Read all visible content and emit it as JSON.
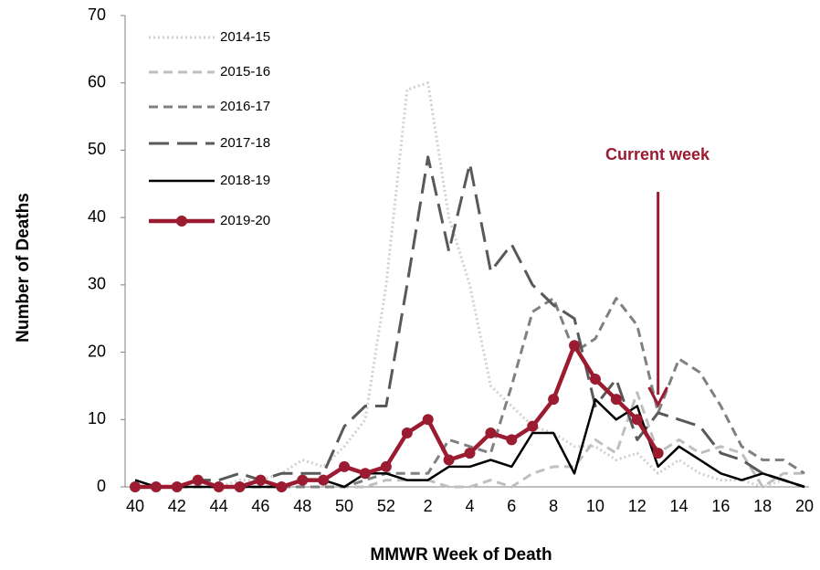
{
  "chart_data": {
    "type": "line",
    "x_label": "MMWR Week of Death",
    "y_label": "Number of Deaths",
    "annotation": "Current week",
    "categories": [
      "40",
      null,
      "42",
      null,
      "44",
      null,
      "46",
      null,
      "48",
      null,
      "50",
      null,
      "52",
      null,
      "2",
      null,
      "4",
      null,
      "6",
      null,
      "8",
      null,
      "10",
      null,
      "12",
      null,
      "14",
      null,
      "16",
      null,
      "18",
      null,
      "20"
    ],
    "ylim": [
      0,
      70
    ],
    "yticks": [
      0,
      10,
      20,
      30,
      40,
      50,
      60,
      70
    ],
    "legend": "upper-left",
    "series": [
      {
        "name": "2014-15",
        "color": "#d0d0d0",
        "style": "dotted",
        "values": [
          0,
          0,
          0,
          0,
          0,
          1,
          1,
          2,
          4,
          3,
          6,
          10,
          30,
          59,
          60,
          40,
          30,
          15,
          12,
          9,
          8,
          6,
          6,
          4,
          5,
          2,
          4,
          2,
          1,
          1,
          0,
          1,
          0
        ]
      },
      {
        "name": "2015-16",
        "color": "#bfbfbf",
        "style": "dashed",
        "values": [
          0,
          0,
          0,
          0,
          0,
          0,
          0,
          0,
          0,
          0,
          0,
          0,
          1,
          1,
          1,
          0,
          0,
          1,
          0,
          2,
          3,
          3,
          7,
          5,
          14,
          5,
          7,
          5,
          6,
          5,
          0,
          2,
          2
        ]
      },
      {
        "name": "2016-17",
        "color": "#808080",
        "style": "dashed",
        "values": [
          0,
          0,
          0,
          0,
          0,
          0,
          0,
          0,
          0,
          0,
          0,
          1,
          2,
          2,
          2,
          7,
          6,
          5,
          15,
          26,
          28,
          20,
          22,
          28,
          24,
          11,
          19,
          17,
          12,
          6,
          4,
          4,
          2
        ]
      },
      {
        "name": "2017-18",
        "color": "#595959",
        "style": "longdash",
        "values": [
          0,
          0,
          0,
          1,
          1,
          2,
          1,
          2,
          2,
          2,
          9,
          12,
          12,
          30,
          49,
          35,
          48,
          32,
          36,
          30,
          27,
          25,
          12,
          16,
          7,
          11,
          10,
          9,
          5,
          4,
          2,
          1,
          0
        ]
      },
      {
        "name": "2018-19",
        "color": "#000000",
        "style": "solid",
        "values": [
          1,
          0,
          0,
          0,
          0,
          0,
          0,
          0,
          1,
          1,
          0,
          2,
          2,
          1,
          1,
          3,
          3,
          4,
          3,
          8,
          8,
          2,
          13,
          10,
          12,
          3,
          6,
          4,
          2,
          1,
          2,
          1,
          0
        ]
      },
      {
        "name": "2019-20",
        "color": "#9b1b30",
        "style": "markers",
        "values": [
          0,
          0,
          0,
          1,
          0,
          0,
          1,
          0,
          1,
          1,
          3,
          2,
          3,
          8,
          10,
          4,
          5,
          8,
          7,
          9,
          13,
          21,
          16,
          13,
          10,
          5,
          null,
          null,
          null,
          null,
          null,
          null,
          null
        ]
      }
    ]
  }
}
